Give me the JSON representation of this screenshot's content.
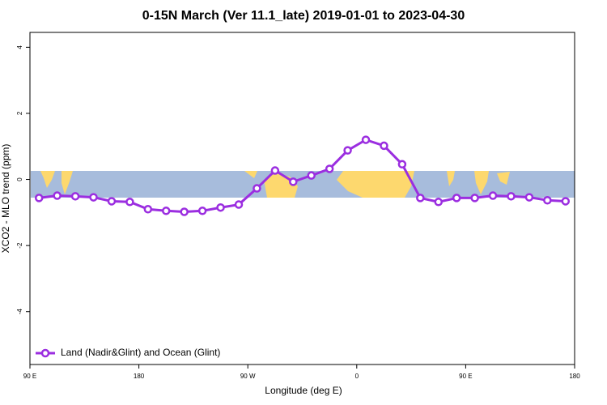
{
  "chart_data": {
    "type": "line",
    "title": "0-15N March (Ver 11.1_late)   2019-01-01 to 2023-04-30",
    "xlabel": "Longitude (deg E)",
    "ylabel": "XCO2 - MLO trend (ppm)",
    "xlim": [
      90,
      540
    ],
    "ylim": [
      -5.6,
      4.45
    ],
    "xticks": [
      {
        "value": 90,
        "label": "90 E"
      },
      180,
      {
        "value": 270,
        "label": "90 W"
      },
      {
        "value": 360,
        "label": "0"
      },
      {
        "value": 450,
        "label": "90 E"
      },
      {
        "value": 540,
        "label": "180"
      }
    ],
    "yticks": [
      4,
      2,
      0,
      -2,
      -4
    ],
    "legend": "bottomleft",
    "x": [
      97.5,
      112.5,
      127.5,
      142.5,
      157.5,
      172.5,
      187.5,
      202.5,
      217.5,
      232.5,
      247.5,
      262.5,
      277.5,
      292.5,
      307.5,
      322.5,
      337.5,
      352.5,
      367.5,
      382.5,
      397.5,
      412.5,
      427.5,
      442.5,
      457.5,
      472.5,
      487.5,
      502.5,
      517.5,
      532.5
    ],
    "series": [
      {
        "name": "Land (Nadir&Glint) and Ocean (Glint)",
        "color": "#9b2ee0",
        "values": [
          -0.56,
          -0.49,
          -0.51,
          -0.54,
          -0.66,
          -0.68,
          -0.9,
          -0.95,
          -0.98,
          -0.95,
          -0.85,
          -0.76,
          -0.27,
          0.27,
          -0.07,
          0.12,
          0.32,
          0.88,
          1.2,
          1.02,
          0.46,
          -0.56,
          -0.68,
          -0.56,
          -0.56,
          -0.49,
          -0.51,
          -0.54,
          -0.63,
          -0.66
        ]
      }
    ]
  }
}
